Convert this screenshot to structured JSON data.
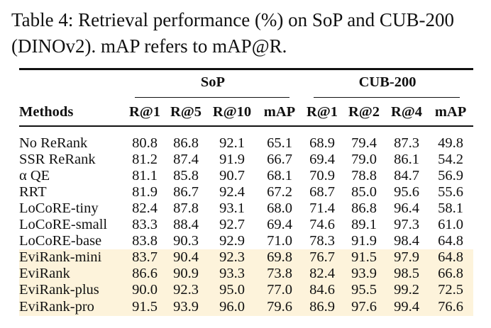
{
  "caption": "Table 4: Retrieval performance (%) on SoP and CUB-200 (DINOv2). mAP refers to mAP@R.",
  "table": {
    "group_headers": [
      "SoP",
      "CUB-200"
    ],
    "method_header": "Methods",
    "metric_headers": [
      "R@1",
      "R@5",
      "R@10",
      "mAP",
      "R@1",
      "R@2",
      "R@4",
      "mAP"
    ],
    "rows": [
      {
        "method": "No ReRank",
        "values": [
          "80.8",
          "86.8",
          "92.1",
          "65.1",
          "68.9",
          "79.4",
          "87.3",
          "49.8"
        ]
      },
      {
        "method": "SSR ReRank",
        "values": [
          "81.2",
          "87.4",
          "91.9",
          "66.7",
          "69.4",
          "79.0",
          "86.1",
          "54.2"
        ]
      },
      {
        "method": "α QE",
        "values": [
          "81.1",
          "85.8",
          "90.7",
          "68.1",
          "70.9",
          "78.8",
          "84.7",
          "56.9"
        ]
      },
      {
        "method": "RRT",
        "values": [
          "81.9",
          "86.7",
          "92.4",
          "67.2",
          "68.7",
          "85.0",
          "95.6",
          "55.6"
        ]
      },
      {
        "method": "LoCoRE-tiny",
        "values": [
          "82.4",
          "87.8",
          "93.1",
          "68.0",
          "71.4",
          "86.8",
          "96.4",
          "58.1"
        ]
      },
      {
        "method": "LoCoRE-small",
        "values": [
          "83.3",
          "88.4",
          "92.7",
          "69.4",
          "74.6",
          "89.1",
          "97.3",
          "61.0"
        ]
      },
      {
        "method": "LoCoRE-base",
        "values": [
          "83.8",
          "90.3",
          "92.9",
          "71.0",
          "78.3",
          "91.9",
          "98.4",
          "64.8"
        ]
      },
      {
        "method": "EviRank-mini",
        "values": [
          "83.7",
          "90.4",
          "92.3",
          "69.8",
          "76.7",
          "91.5",
          "97.9",
          "64.8"
        ]
      },
      {
        "method": "EviRank",
        "values": [
          "86.6",
          "90.9",
          "93.3",
          "73.8",
          "82.4",
          "93.9",
          "98.5",
          "66.8"
        ]
      },
      {
        "method": "EviRank-plus",
        "values": [
          "90.0",
          "92.3",
          "95.0",
          "77.0",
          "84.6",
          "95.5",
          "99.2",
          "72.5"
        ]
      },
      {
        "method": "EviRank-pro",
        "values": [
          "91.5",
          "93.9",
          "96.0",
          "79.6",
          "86.9",
          "97.6",
          "99.4",
          "76.6"
        ]
      }
    ],
    "highlight_color": "#fdf3db"
  }
}
